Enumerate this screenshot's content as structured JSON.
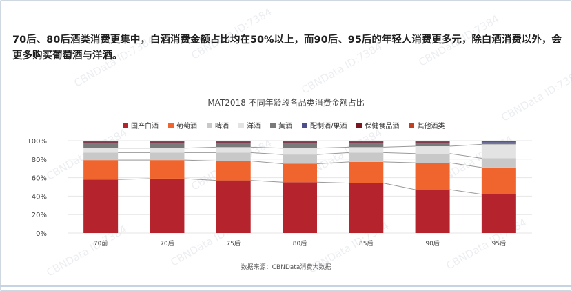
{
  "headline": "70后、80后酒类消费更集中，白酒消费金额占比均在50%以上，而90后、95后的年轻人消费更多元，除白酒消费以外，会更多购买葡萄酒与洋酒。",
  "source": "数据来源：CBNData消费大数据",
  "watermark_text": "CBNData ID:7384",
  "chart_data": {
    "type": "bar",
    "stacked": true,
    "title": "MAT2018   不同年龄段各品类消费金额占比",
    "categories": [
      "70前",
      "70后",
      "75后",
      "80后",
      "85后",
      "90后",
      "95后"
    ],
    "y_ticks": [
      "0%",
      "20%",
      "40%",
      "60%",
      "80%",
      "100%"
    ],
    "ylim": [
      0,
      100
    ],
    "grid": true,
    "legend_position": "top",
    "series": [
      {
        "name": "国产白酒",
        "color": "#b5232d",
        "values": [
          58,
          59,
          57,
          55,
          54,
          47,
          42
        ]
      },
      {
        "name": "葡萄酒",
        "color": "#f0652d",
        "values": [
          21,
          20,
          21,
          20,
          23,
          29,
          29
        ]
      },
      {
        "name": "啤酒",
        "color": "#c8c8c8",
        "values": [
          8,
          8,
          9,
          10,
          10,
          10,
          10
        ]
      },
      {
        "name": "洋酒",
        "color": "#e3e3e3",
        "values": [
          5,
          5,
          6,
          7,
          6,
          8,
          15
        ]
      },
      {
        "name": "黄酒",
        "color": "#7a7a7a",
        "values": [
          5,
          5,
          4,
          5,
          4,
          3,
          2
        ]
      },
      {
        "name": "配制酒/果酒",
        "color": "#4d4f8c",
        "values": [
          1,
          1,
          1,
          1,
          1,
          1,
          1
        ]
      },
      {
        "name": "保健食品酒",
        "color": "#7a1620",
        "values": [
          1,
          1,
          1,
          1,
          1,
          1,
          0.5
        ]
      },
      {
        "name": "其他酒类",
        "color": "#c04020",
        "values": [
          1,
          1,
          1,
          1,
          1,
          1,
          0.5
        ]
      }
    ]
  }
}
